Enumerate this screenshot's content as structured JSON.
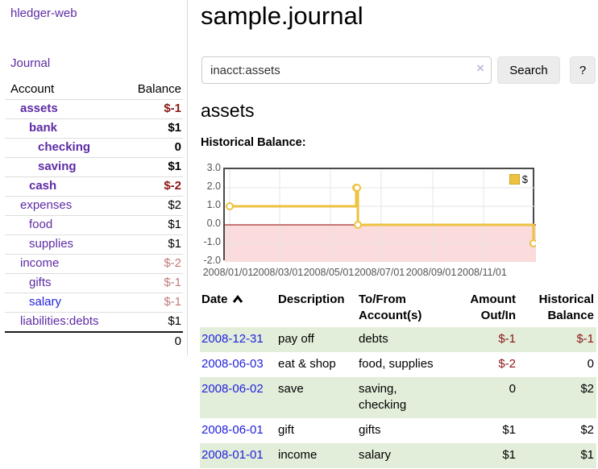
{
  "app": {
    "title": "hledger-web"
  },
  "sidebar": {
    "journal_label": "Journal",
    "accounts": {
      "headers": [
        "Account",
        "Balance"
      ],
      "rows": [
        {
          "name": "assets",
          "indent": 1,
          "bold": true,
          "link_color": "purple",
          "balance": "$-1",
          "balance_class": "neg"
        },
        {
          "name": "bank",
          "indent": 2,
          "bold": true,
          "link_color": "purple",
          "balance": "$1",
          "balance_class": "pos"
        },
        {
          "name": "checking",
          "indent": 3,
          "bold": true,
          "link_color": "purple",
          "balance": "0",
          "balance_class": "pos"
        },
        {
          "name": "saving",
          "indent": 3,
          "bold": true,
          "link_color": "purple",
          "balance": "$1",
          "balance_class": "pos"
        },
        {
          "name": "cash",
          "indent": 2,
          "bold": true,
          "link_color": "purple",
          "balance": "$-2",
          "balance_class": "neg"
        },
        {
          "name": "expenses",
          "indent": 1,
          "bold": false,
          "link_color": "purple",
          "balance": "$2",
          "balance_class": "pos"
        },
        {
          "name": "food",
          "indent": 2,
          "bold": false,
          "link_color": "purple",
          "balance": "$1",
          "balance_class": "pos"
        },
        {
          "name": "supplies",
          "indent": 2,
          "bold": false,
          "link_color": "purple",
          "balance": "$1",
          "balance_class": "pos"
        },
        {
          "name": "income",
          "indent": 1,
          "bold": false,
          "link_color": "purple",
          "balance": "$-2",
          "balance_class": "neg-muted"
        },
        {
          "name": "gifts",
          "indent": 2,
          "bold": false,
          "link_color": "purple",
          "balance": "$-1",
          "balance_class": "neg-muted"
        },
        {
          "name": "salary",
          "indent": 2,
          "bold": false,
          "link_color": "blue",
          "balance": "$-1",
          "balance_class": "neg-muted"
        },
        {
          "name": "liabilities:debts",
          "indent": 1,
          "bold": false,
          "link_color": "purple",
          "balance": "$1",
          "balance_class": "pos",
          "last": true
        }
      ],
      "total": "0"
    }
  },
  "main": {
    "title": "sample.journal",
    "search": {
      "value": "inacct:assets",
      "clear_glyph": "×",
      "button_label": "Search",
      "help_label": "?"
    },
    "account_heading": "assets",
    "chart_heading": "Historical Balance:"
  },
  "chart_data": {
    "type": "line",
    "title": "Historical Balance:",
    "step": true,
    "x_start": "2008-01-01",
    "x_end": "2008-12-31",
    "series": [
      {
        "name": "$",
        "color": "#edc240",
        "points": [
          [
            "2008-01-01",
            1
          ],
          [
            "2008-06-01",
            2
          ],
          [
            "2008-06-02",
            2
          ],
          [
            "2008-06-03",
            0
          ],
          [
            "2008-12-31",
            -1
          ]
        ]
      }
    ],
    "x_ticks": [
      "2008/01/01",
      "2008/03/01",
      "2008/05/01",
      "2008/07/01",
      "2008/09/01",
      "2008/11/01"
    ],
    "y_ticks": [
      "3.0",
      "2.0",
      "1.0",
      "0.0",
      "-1.0",
      "-2.0"
    ],
    "ylim": [
      -2,
      3
    ],
    "grid_color": "#e6e6e6",
    "negative_region_color": "#fbdbdb",
    "zero_line_color": "#8b0000",
    "legend_position": "top-right"
  },
  "transactions": {
    "headers": [
      {
        "lines": [
          "Date"
        ],
        "sorted": "asc"
      },
      {
        "lines": [
          "Description"
        ]
      },
      {
        "lines": [
          "To/From",
          "Account(s)"
        ]
      },
      {
        "lines": [
          "Amount",
          "Out/In"
        ],
        "align": "right"
      },
      {
        "lines": [
          "Historical",
          "Balance"
        ],
        "align": "right"
      }
    ],
    "rows": [
      {
        "date": "2008-12-31",
        "description": "pay off",
        "accounts": [
          "debts"
        ],
        "amount": "$-1",
        "amount_class": "neg",
        "balance": "$-1",
        "balance_class": "neg"
      },
      {
        "date": "2008-06-03",
        "description": "eat & shop",
        "accounts": [
          "food, supplies"
        ],
        "amount": "$-2",
        "amount_class": "neg",
        "balance": "0",
        "balance_class": "pos"
      },
      {
        "date": "2008-06-02",
        "description": "save",
        "accounts": [
          "saving,",
          "checking"
        ],
        "amount": "0",
        "amount_class": "pos",
        "balance": "$2",
        "balance_class": "pos"
      },
      {
        "date": "2008-06-01",
        "description": "gift",
        "accounts": [
          "gifts"
        ],
        "amount": "$1",
        "amount_class": "pos",
        "balance": "$2",
        "balance_class": "pos"
      },
      {
        "date": "2008-01-01",
        "description": "income",
        "accounts": [
          "salary"
        ],
        "amount": "$1",
        "amount_class": "pos",
        "balance": "$1",
        "balance_class": "pos"
      }
    ]
  }
}
